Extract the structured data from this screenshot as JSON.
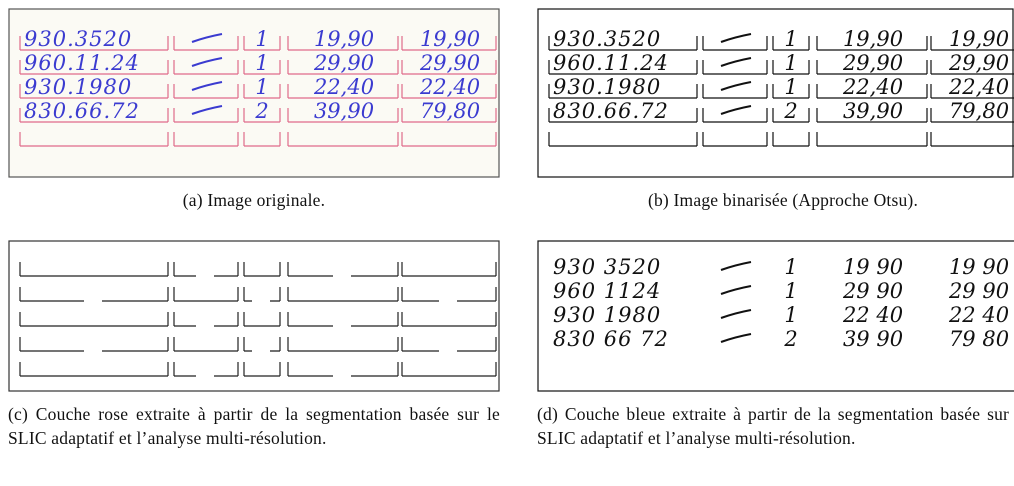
{
  "panels": [
    {
      "caption": "(a) Image originale.",
      "rows": [
        [
          "930.3520",
          "1",
          "19,90",
          "19,90"
        ],
        [
          "960.11.24",
          "1",
          "29,90",
          "29,90"
        ],
        [
          "930.1980",
          "1",
          "22,40",
          "22,40"
        ],
        [
          "830.66.72",
          "2",
          "39,90",
          "79,80"
        ]
      ]
    },
    {
      "caption": "(b) Image binarisée (Approche Otsu).",
      "rows": [
        [
          "930.3520",
          "1",
          "19,90",
          "19,90"
        ],
        [
          "960.11.24",
          "1",
          "29,90",
          "29,90"
        ],
        [
          "930.1980",
          "1",
          "22,40",
          "22,40"
        ],
        [
          "830.66.72",
          "2",
          "39,90",
          "79,80"
        ]
      ]
    },
    {
      "caption": "(c) Couche rose extraite à partir de la segmentation basée sur le SLIC adaptatif et l’analyse multi-résolution."
    },
    {
      "caption": "(d) Couche bleue extraite à partir de la segmentation basée sur le SLIC adaptatif et l’analyse multi-résolution.",
      "rows": [
        [
          "930 3520",
          "1",
          "19 90",
          "19 90"
        ],
        [
          "960 1124",
          "1",
          "29 90",
          "29 90"
        ],
        [
          "930 1980",
          "1",
          "22 40",
          "22 40"
        ],
        [
          "830 66 72",
          "2",
          "39 90",
          "79 80"
        ]
      ]
    }
  ]
}
